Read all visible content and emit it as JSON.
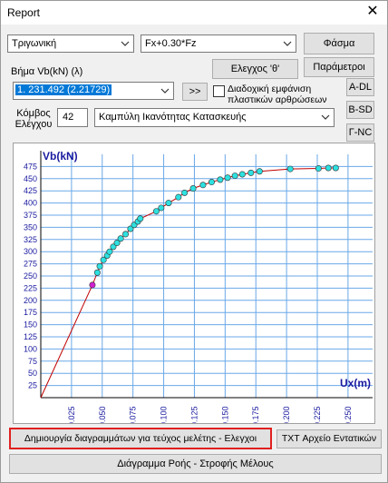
{
  "window": {
    "title": "Report",
    "close_glyph": "✕"
  },
  "controls": {
    "type_select": "Τριγωνική",
    "combo_select": "Fx+0.30*Fz",
    "spectrum_button": "Φάσμα",
    "params_button": "Παράμετροι",
    "check_button": "Ελεγχος 'θ'",
    "step_label": "Βήμα   Vb(kN)   (λ)",
    "step_value": "1. 231.492 (2.21729)",
    "next_button": ">>",
    "seq_checkbox_label": "Διαδοχική εμφάνιση πλαστικών αρθρώσεων",
    "seq_checked": false,
    "adl_button": "A-DL",
    "bsd_button": "B-SD",
    "gnc_button": "Γ-NC",
    "node_label": "Κόμβος Ελέγχου",
    "node_value": "42",
    "curve_select": "Καμπύλη Ικανότητας Κατασκευής",
    "create_diagrams_button": "Δημιουργία διαγραμμάτων για τεύχος μελέτης - Ελεγχοι",
    "txt_button": "TXT Αρχείο Εντατικών",
    "flow_button": "Διάγραμμα Ροής - Στροφής Μέλους"
  },
  "colors": {
    "grid": "#6aa8e8",
    "axis_text": "#1a1aa0",
    "curve": "#c00000",
    "point": "#2ee0e0",
    "first_point": "#d020d0",
    "highlight": "#e02020"
  },
  "chart_data": {
    "type": "scatter",
    "ylabel": "Vb(kN)",
    "xlabel": "Ux(m)",
    "xlim": [
      0,
      0.27
    ],
    "ylim": [
      0,
      500
    ],
    "x_ticks": [
      0.025,
      0.05,
      0.075,
      0.1,
      0.125,
      0.15,
      0.175,
      0.2,
      0.225,
      0.25
    ],
    "x_tick_labels": [
      "0.025",
      "0.050",
      "0.075",
      "0.100",
      "0.125",
      "0.150",
      "0.175",
      "0.200",
      "0.225",
      "0.250"
    ],
    "y_ticks": [
      25,
      50,
      75,
      100,
      125,
      150,
      175,
      200,
      225,
      250,
      275,
      300,
      325,
      350,
      375,
      400,
      425,
      450,
      475
    ],
    "grid": true,
    "points": [
      [
        0.0,
        0.0
      ],
      [
        0.042,
        231.5
      ],
      [
        0.046,
        257
      ],
      [
        0.048,
        270
      ],
      [
        0.051,
        283
      ],
      [
        0.054,
        292
      ],
      [
        0.056,
        300
      ],
      [
        0.059,
        310
      ],
      [
        0.062,
        318
      ],
      [
        0.065,
        327
      ],
      [
        0.069,
        336
      ],
      [
        0.073,
        347
      ],
      [
        0.076,
        355
      ],
      [
        0.079,
        362
      ],
      [
        0.081,
        368
      ],
      [
        0.094,
        383
      ],
      [
        0.098,
        390
      ],
      [
        0.104,
        400
      ],
      [
        0.112,
        412
      ],
      [
        0.117,
        421
      ],
      [
        0.124,
        430
      ],
      [
        0.132,
        437
      ],
      [
        0.139,
        443
      ],
      [
        0.146,
        448
      ],
      [
        0.152,
        452
      ],
      [
        0.158,
        456
      ],
      [
        0.164,
        459
      ],
      [
        0.171,
        462
      ],
      [
        0.178,
        465
      ],
      [
        0.203,
        470
      ],
      [
        0.226,
        471
      ],
      [
        0.234,
        472
      ],
      [
        0.24,
        472
      ]
    ],
    "first_point_index": 1
  }
}
